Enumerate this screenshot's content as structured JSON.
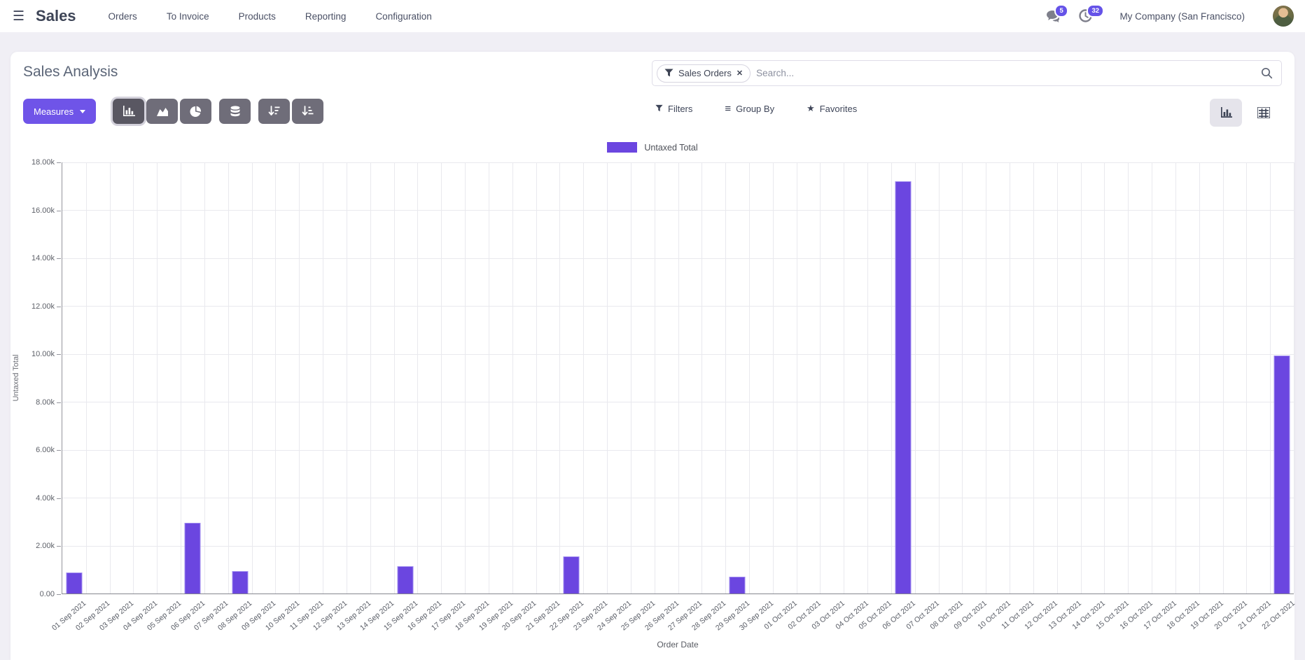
{
  "navbar": {
    "brand": "Sales",
    "items": [
      {
        "label": "Orders"
      },
      {
        "label": "To Invoice"
      },
      {
        "label": "Products"
      },
      {
        "label": "Reporting"
      },
      {
        "label": "Configuration"
      }
    ],
    "systray": {
      "messages_count": "5",
      "activities_count": "32",
      "company": "My Company (San Francisco)"
    }
  },
  "control_panel": {
    "title": "Sales Analysis",
    "search": {
      "facet": "Sales Orders",
      "placeholder": "Search..."
    },
    "measures_label": "Measures",
    "filters_label": "Filters",
    "group_by_label": "Group By",
    "favorites_label": "Favorites"
  },
  "icons": {
    "hamburger": "☰",
    "close": "✕",
    "group_by": "≡",
    "star": "★"
  },
  "colors": {
    "accent_purple": "#6f54e8",
    "bar_fill": "#6b46e0",
    "bar_border": "#a18df0",
    "badge": "#6553e8",
    "icon_button_bg": "#6f6d79",
    "icon_button_active_bg": "#595762",
    "grid_line": "#e9e9ee"
  },
  "chart_data": {
    "type": "bar",
    "title": "",
    "xlabel": "Order Date",
    "ylabel": "Untaxed Total",
    "legend_position": "top-center",
    "grid": true,
    "ylim": [
      0,
      18000
    ],
    "yticks": [
      {
        "value": 0,
        "label": "0.00"
      },
      {
        "value": 2000,
        "label": "2.00k"
      },
      {
        "value": 4000,
        "label": "4.00k"
      },
      {
        "value": 6000,
        "label": "6.00k"
      },
      {
        "value": 8000,
        "label": "8.00k"
      },
      {
        "value": 10000,
        "label": "10.00k"
      },
      {
        "value": 12000,
        "label": "12.00k"
      },
      {
        "value": 14000,
        "label": "14.00k"
      },
      {
        "value": 16000,
        "label": "16.00k"
      },
      {
        "value": 18000,
        "label": "18.00k"
      }
    ],
    "categories": [
      "01 Sep 2021",
      "02 Sep 2021",
      "03 Sep 2021",
      "04 Sep 2021",
      "05 Sep 2021",
      "06 Sep 2021",
      "07 Sep 2021",
      "08 Sep 2021",
      "09 Sep 2021",
      "10 Sep 2021",
      "11 Sep 2021",
      "12 Sep 2021",
      "13 Sep 2021",
      "14 Sep 2021",
      "15 Sep 2021",
      "16 Sep 2021",
      "17 Sep 2021",
      "18 Sep 2021",
      "19 Sep 2021",
      "20 Sep 2021",
      "21 Sep 2021",
      "22 Sep 2021",
      "23 Sep 2021",
      "24 Sep 2021",
      "25 Sep 2021",
      "26 Sep 2021",
      "27 Sep 2021",
      "28 Sep 2021",
      "29 Sep 2021",
      "30 Sep 2021",
      "01 Oct 2021",
      "02 Oct 2021",
      "03 Oct 2021",
      "04 Oct 2021",
      "05 Oct 2021",
      "06 Oct 2021",
      "07 Oct 2021",
      "08 Oct 2021",
      "09 Oct 2021",
      "10 Oct 2021",
      "11 Oct 2021",
      "12 Oct 2021",
      "13 Oct 2021",
      "14 Oct 2021",
      "15 Oct 2021",
      "16 Oct 2021",
      "17 Oct 2021",
      "18 Oct 2021",
      "19 Oct 2021",
      "20 Oct 2021",
      "21 Oct 2021",
      "22 Oct 2021"
    ],
    "series": [
      {
        "name": "Untaxed Total",
        "color": "#6b46e0",
        "values": [
          870,
          0,
          0,
          0,
          0,
          2950,
          0,
          950,
          0,
          0,
          0,
          0,
          0,
          0,
          1150,
          0,
          0,
          0,
          0,
          0,
          0,
          1550,
          0,
          0,
          0,
          0,
          0,
          0,
          700,
          0,
          0,
          0,
          0,
          0,
          0,
          17200,
          0,
          0,
          0,
          0,
          0,
          0,
          0,
          0,
          0,
          0,
          0,
          0,
          0,
          0,
          0,
          9950
        ]
      }
    ]
  }
}
